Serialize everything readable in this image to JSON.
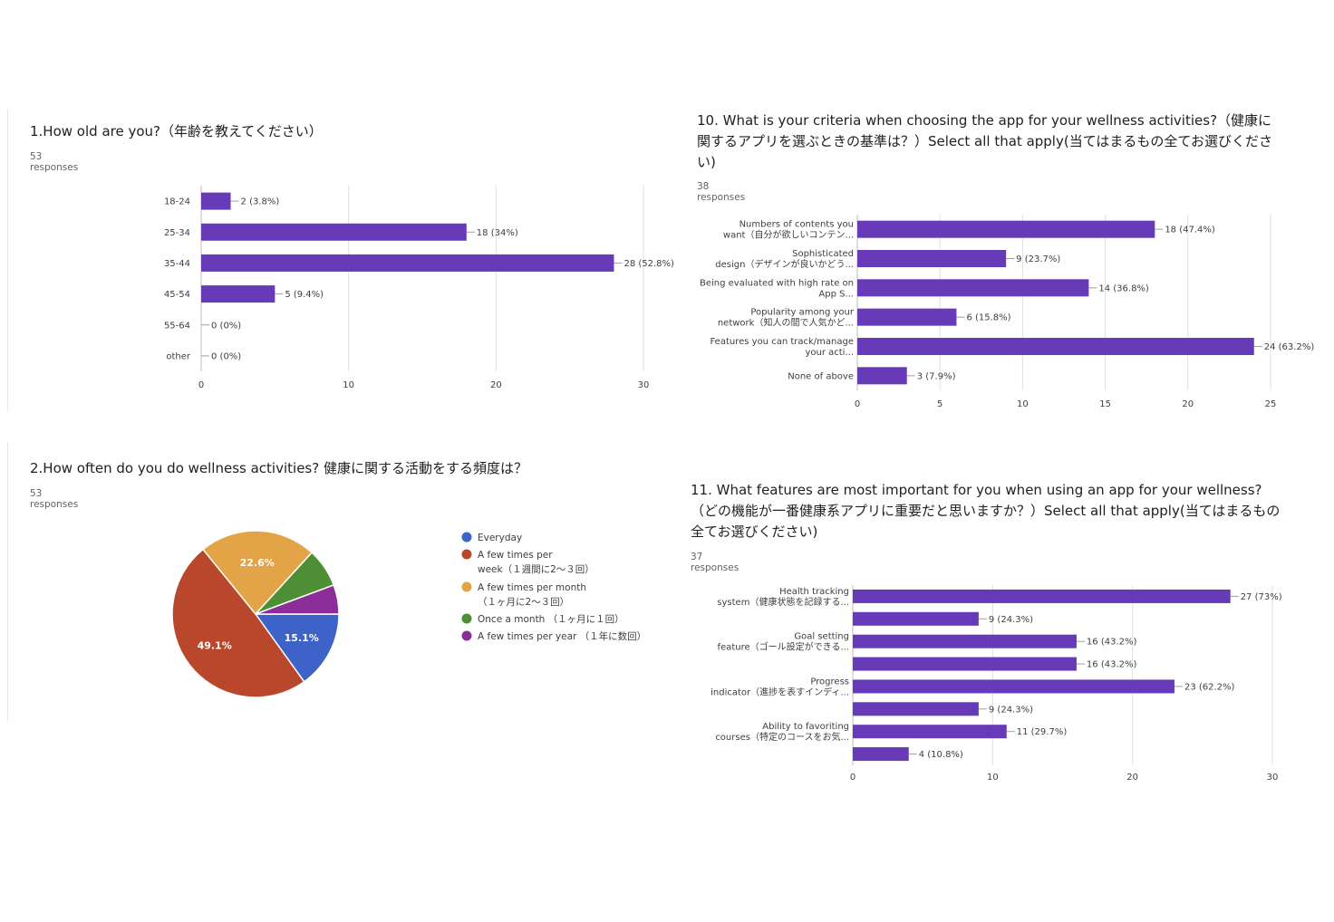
{
  "colors": {
    "bar": "#673ab7",
    "grid": "#e0e0e0",
    "axis": "#bdbdbd",
    "label": "#3c4043",
    "pie": [
      "#3d63c8",
      "#b9472b",
      "#e2a446",
      "#4e8f35",
      "#8c2e9a"
    ]
  },
  "charts": [
    {
      "title": "1.How old are you?（年齢を教えてください）",
      "responses": "53 responses"
    },
    {
      "title": "10. What is your criteria when choosing the app for your wellness activities?（健康に関するアプリを選ぶときの基準は？）Select all that apply(当てはまるもの全てお選びください)",
      "responses": "38 responses"
    },
    {
      "title": "2.How often do you do wellness activities? 健康に関する活動をする頻度は？",
      "responses": "53 responses"
    },
    {
      "title": "11. What features are most important for you when using an app for your wellness?（どの機能が一番健康系アプリに重要だと思いますか？）Select all that apply(当てはまるもの全てお選びください)",
      "responses": "37 responses"
    }
  ],
  "chart_data": [
    {
      "type": "bar",
      "orientation": "horizontal",
      "categories": [
        [
          "18-24"
        ],
        [
          "25-34"
        ],
        [
          "35-44"
        ],
        [
          "45-54"
        ],
        [
          "55-64"
        ],
        [
          "other"
        ]
      ],
      "values": [
        2,
        18,
        28,
        5,
        0,
        0
      ],
      "data_labels": [
        "2 (3.8%)",
        "18 (34%)",
        "28 (52.8%)",
        "5 (9.4%)",
        "0 (0%)",
        "0 (0%)"
      ],
      "xlim": [
        0,
        30
      ],
      "xticks": [
        0,
        10,
        20,
        30
      ],
      "grid": true
    },
    {
      "type": "bar",
      "orientation": "horizontal",
      "categories": [
        [
          "Numbers of contents you",
          "want（自分が欲しいコンテン..."
        ],
        [
          "Sophisticated",
          "design（デザインが良いかどう..."
        ],
        [
          "Being evaluated with high rate on",
          "App S..."
        ],
        [
          "Popularity among your",
          "network（知人の間で人気かど..."
        ],
        [
          "Features you can track/manage",
          "your acti..."
        ],
        [
          "None of above"
        ]
      ],
      "values": [
        18,
        9,
        14,
        6,
        24,
        3
      ],
      "data_labels": [
        "18 (47.4%)",
        "9 (23.7%)",
        "14 (36.8%)",
        "6 (15.8%)",
        "24 (63.2%)",
        "3 (7.9%)"
      ],
      "xlim": [
        0,
        25
      ],
      "xticks": [
        0,
        5,
        10,
        15,
        20,
        25
      ],
      "grid": true
    },
    {
      "type": "pie",
      "labels": [
        [
          "Everyday"
        ],
        [
          "A few times per",
          "week（１週間に2〜３回）"
        ],
        [
          "A few times per month",
          "（１ヶ月に2〜３回）"
        ],
        [
          "Once a month （１ヶ月に１回）"
        ],
        [
          "A few times per year （１年に数回）"
        ]
      ],
      "values": [
        8,
        26,
        12,
        4,
        3
      ],
      "slice_labels": [
        "15.1%",
        "49.1%",
        "22.6%",
        "",
        ""
      ],
      "legend": "right"
    },
    {
      "type": "bar",
      "orientation": "horizontal",
      "categories": [
        [
          "Health tracking",
          "system（健康状態を記録する..."
        ],
        [],
        [
          "Goal setting",
          "feature（ゴール設定ができる..."
        ],
        [],
        [
          "Progress",
          "indicator（進捗を表すインディ..."
        ],
        [],
        [
          "Ability to favoriting",
          "courses（特定のコースをお気..."
        ],
        []
      ],
      "values": [
        27,
        9,
        16,
        16,
        23,
        9,
        11,
        4
      ],
      "data_labels": [
        "27 (73%)",
        "9 (24.3%)",
        "16 (43.2%)",
        "16 (43.2%)",
        "23 (62.2%)",
        "9 (24.3%)",
        "11 (29.7%)",
        "4 (10.8%)"
      ],
      "xlim": [
        0,
        30
      ],
      "xticks": [
        0,
        10,
        20,
        30
      ],
      "grid": true
    }
  ]
}
